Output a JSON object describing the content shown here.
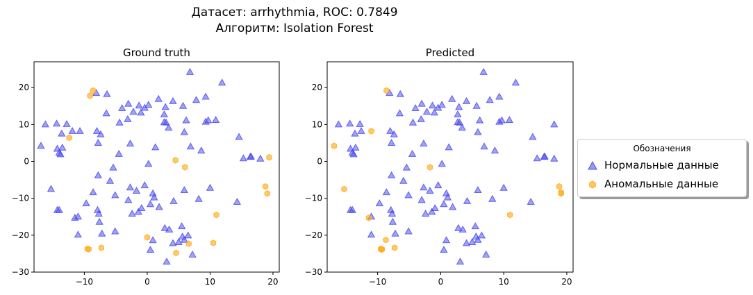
{
  "figure": {
    "title_line1": "Датасет: arrhythmia, ROC: 0.7849",
    "title_line2": "Алгоритм: Isolation Forest"
  },
  "legend": {
    "title": "Обозначения",
    "normal_label": "Нормальные данные",
    "anomaly_label": "Аномальные данные"
  },
  "colors": {
    "normal": "#4444ee",
    "anomaly": "#ffad1f"
  },
  "chart_data": [
    {
      "type": "scatter",
      "title": "Ground truth",
      "xlim": [
        -18,
        21
      ],
      "ylim": [
        -30,
        27
      ],
      "xticks": [
        -10,
        0,
        10,
        20
      ],
      "yticks": [
        -30,
        -20,
        -10,
        0,
        10,
        20
      ],
      "series": [
        {
          "name": "Нормальные данные",
          "marker": "triangle",
          "points": [
            [
              6.8,
              24.2
            ],
            [
              11.9,
              21.3
            ],
            [
              -8.1,
              18.5
            ],
            [
              -6.4,
              18.2
            ],
            [
              1.8,
              16.9
            ],
            [
              4.1,
              16.3
            ],
            [
              9.3,
              17.5
            ],
            [
              -3.0,
              15.6
            ],
            [
              -4.0,
              14.4
            ],
            [
              -1.3,
              15.1
            ],
            [
              -0.4,
              14.5
            ],
            [
              0.2,
              15.3
            ],
            [
              5.7,
              15.0
            ],
            [
              7.8,
              16.6
            ],
            [
              -6.5,
              13.0
            ],
            [
              -1.0,
              13.2
            ],
            [
              2.9,
              14.7
            ],
            [
              2.7,
              12.7
            ],
            [
              -16.2,
              10.0
            ],
            [
              -14.4,
              10.2
            ],
            [
              -12.8,
              10.1
            ],
            [
              -4.4,
              10.5
            ],
            [
              -3.1,
              11.4
            ],
            [
              -2.2,
              13.4
            ],
            [
              2.7,
              10.6
            ],
            [
              3.0,
              10.5
            ],
            [
              6.2,
              11.1
            ],
            [
              9.3,
              10.7
            ],
            [
              9.7,
              11.1
            ],
            [
              10.9,
              11.2
            ],
            [
              3.4,
              9.1
            ],
            [
              -13.6,
              7.5
            ],
            [
              -11.9,
              8.2
            ],
            [
              -10.7,
              8.2
            ],
            [
              -8.0,
              8.2
            ],
            [
              -7.4,
              7.3
            ],
            [
              5.9,
              7.9
            ],
            [
              -16.9,
              4.2
            ],
            [
              -14.3,
              3.4
            ],
            [
              -13.5,
              3.7
            ],
            [
              -14.0,
              2.3
            ],
            [
              -13.8,
              1.9
            ],
            [
              -7.8,
              5.0
            ],
            [
              -2.7,
              4.8
            ],
            [
              1.3,
              3.8
            ],
            [
              6.9,
              4.0
            ],
            [
              8.6,
              2.9
            ],
            [
              14.6,
              6.6
            ],
            [
              15.3,
              0.8
            ],
            [
              16.4,
              1.2
            ],
            [
              16.5,
              1.3
            ],
            [
              18.0,
              0.7
            ],
            [
              -4.5,
              2.0
            ],
            [
              0.2,
              -0.7
            ],
            [
              -5.4,
              -1.7
            ],
            [
              -7.8,
              -3.8
            ],
            [
              -5.9,
              -5.3
            ],
            [
              -8.6,
              -8.4
            ],
            [
              -5.1,
              -9.2
            ],
            [
              -2.7,
              -7.1
            ],
            [
              -1.7,
              -8.0
            ],
            [
              -0.4,
              -6.5
            ],
            [
              0.9,
              -8.7
            ],
            [
              5.9,
              -7.8
            ],
            [
              10.0,
              -7.2
            ],
            [
              -15.3,
              -7.5
            ],
            [
              -14.3,
              -13.2
            ],
            [
              -14.0,
              -13.2
            ],
            [
              -9.7,
              -11.4
            ],
            [
              -7.9,
              -13.2
            ],
            [
              -7.7,
              -14.2
            ],
            [
              -7.6,
              -16.4
            ],
            [
              -3.0,
              -10.5
            ],
            [
              -2.4,
              -14.2
            ],
            [
              -1.4,
              -13.7
            ],
            [
              -0.9,
              -12.7
            ],
            [
              0.5,
              -11.6
            ],
            [
              1.1,
              -9.8
            ],
            [
              1.9,
              -12.4
            ],
            [
              4.2,
              -10.8
            ],
            [
              8.2,
              -10.2
            ],
            [
              14.3,
              -11.0
            ],
            [
              -11.5,
              -15.3
            ],
            [
              -11.0,
              -15.0
            ],
            [
              -7.2,
              -19.6
            ],
            [
              -5.1,
              -19.0
            ],
            [
              -11.0,
              -19.9
            ],
            [
              2.8,
              -18.1
            ],
            [
              3.5,
              -18.5
            ],
            [
              5.5,
              -17.6
            ],
            [
              6.5,
              -20.1
            ],
            [
              0.9,
              -21.4
            ],
            [
              0.5,
              -24.0
            ],
            [
              4.1,
              -22.2
            ],
            [
              5.0,
              -21.9
            ],
            [
              5.6,
              -20.4
            ],
            [
              5.9,
              -21.3
            ],
            [
              3.1,
              -27.2
            ],
            [
              7.2,
              -25.3
            ]
          ]
        },
        {
          "name": "Аномальные данные",
          "marker": "hexagon",
          "points": [
            [
              -8.6,
              19.2
            ],
            [
              -9.1,
              17.8
            ],
            [
              -12.4,
              6.4
            ],
            [
              4.5,
              0.3
            ],
            [
              6.0,
              -1.6
            ],
            [
              18.8,
              -6.8
            ],
            [
              19.1,
              -8.7
            ],
            [
              19.4,
              1.1
            ],
            [
              11.0,
              -14.5
            ],
            [
              6.6,
              -22.3
            ],
            [
              10.5,
              -22.1
            ],
            [
              0.0,
              -20.6
            ],
            [
              4.6,
              -24.8
            ],
            [
              -7.3,
              -23.4
            ],
            [
              -9.5,
              -23.7
            ],
            [
              -9.3,
              -23.8
            ]
          ]
        }
      ]
    },
    {
      "type": "scatter",
      "title": "Predicted",
      "xlim": [
        -18,
        21
      ],
      "ylim": [
        -30,
        27
      ],
      "xticks": [
        -10,
        0,
        10,
        20
      ],
      "yticks": [
        -30,
        -20,
        -10,
        0,
        10,
        20
      ],
      "series": [
        {
          "name": "Нормальные данные",
          "marker": "triangle",
          "points": [
            [
              6.8,
              24.2
            ],
            [
              11.9,
              21.3
            ],
            [
              -8.1,
              18.5
            ],
            [
              -6.4,
              18.2
            ],
            [
              1.8,
              16.9
            ],
            [
              4.1,
              16.3
            ],
            [
              9.3,
              17.5
            ],
            [
              -3.0,
              15.6
            ],
            [
              -4.0,
              14.4
            ],
            [
              -1.3,
              15.1
            ],
            [
              -0.4,
              14.5
            ],
            [
              0.2,
              15.3
            ],
            [
              5.7,
              15.0
            ],
            [
              7.8,
              16.6
            ],
            [
              -6.5,
              13.0
            ],
            [
              -1.0,
              13.2
            ],
            [
              2.9,
              14.7
            ],
            [
              2.7,
              12.7
            ],
            [
              -16.2,
              10.0
            ],
            [
              -14.4,
              10.2
            ],
            [
              -12.8,
              10.1
            ],
            [
              -4.4,
              10.5
            ],
            [
              -3.1,
              11.4
            ],
            [
              -2.2,
              13.4
            ],
            [
              2.7,
              10.6
            ],
            [
              3.0,
              10.5
            ],
            [
              6.2,
              11.1
            ],
            [
              9.3,
              10.7
            ],
            [
              9.7,
              11.1
            ],
            [
              10.9,
              11.2
            ],
            [
              3.4,
              9.1
            ],
            [
              -13.6,
              7.5
            ],
            [
              -12.6,
              8.2
            ],
            [
              -8.0,
              8.2
            ],
            [
              -7.4,
              7.3
            ],
            [
              5.9,
              7.9
            ],
            [
              -14.3,
              3.4
            ],
            [
              -13.5,
              3.7
            ],
            [
              -14.0,
              2.3
            ],
            [
              -13.8,
              1.9
            ],
            [
              -7.8,
              5.0
            ],
            [
              -2.7,
              4.8
            ],
            [
              1.3,
              3.8
            ],
            [
              6.9,
              4.0
            ],
            [
              8.6,
              2.9
            ],
            [
              14.6,
              6.6
            ],
            [
              18.0,
              10.0
            ],
            [
              15.3,
              0.8
            ],
            [
              16.4,
              1.2
            ],
            [
              16.5,
              1.3
            ],
            [
              18.0,
              0.7
            ],
            [
              -4.5,
              2.0
            ],
            [
              0.2,
              -0.7
            ],
            [
              -5.4,
              -1.7
            ],
            [
              -7.8,
              -3.8
            ],
            [
              -5.9,
              -5.3
            ],
            [
              -8.6,
              -8.4
            ],
            [
              -5.1,
              -9.2
            ],
            [
              -2.7,
              -7.1
            ],
            [
              -1.7,
              -8.0
            ],
            [
              -0.4,
              -6.5
            ],
            [
              0.9,
              -8.7
            ],
            [
              5.9,
              -7.8
            ],
            [
              10.0,
              -7.2
            ],
            [
              -14.3,
              -13.2
            ],
            [
              -14.0,
              -13.2
            ],
            [
              -9.7,
              -11.4
            ],
            [
              -7.9,
              -13.2
            ],
            [
              -7.7,
              -14.2
            ],
            [
              -7.6,
              -16.4
            ],
            [
              -3.0,
              -10.5
            ],
            [
              -2.4,
              -14.2
            ],
            [
              -1.4,
              -13.7
            ],
            [
              -0.9,
              -12.7
            ],
            [
              0.5,
              -11.6
            ],
            [
              1.1,
              -9.8
            ],
            [
              1.9,
              -12.4
            ],
            [
              4.2,
              -10.8
            ],
            [
              8.2,
              -10.2
            ],
            [
              14.3,
              -11.0
            ],
            [
              -11.0,
              -15.0
            ],
            [
              -7.2,
              -19.6
            ],
            [
              -5.1,
              -19.0
            ],
            [
              -11.0,
              -19.9
            ],
            [
              2.8,
              -18.1
            ],
            [
              3.5,
              -18.5
            ],
            [
              5.5,
              -17.6
            ],
            [
              6.5,
              -20.1
            ],
            [
              0.9,
              -21.4
            ],
            [
              0.5,
              -24.0
            ],
            [
              4.1,
              -22.2
            ],
            [
              5.0,
              -21.9
            ],
            [
              5.6,
              -20.4
            ],
            [
              5.9,
              -21.3
            ],
            [
              3.1,
              -27.2
            ],
            [
              7.2,
              -25.3
            ]
          ]
        },
        {
          "name": "Аномальные данные",
          "marker": "hexagon",
          "points": [
            [
              -8.6,
              19.2
            ],
            [
              -11.0,
              8.2
            ],
            [
              -16.9,
              4.2
            ],
            [
              -1.7,
              -1.6
            ],
            [
              -15.3,
              -7.5
            ],
            [
              -11.4,
              -15.3
            ],
            [
              18.8,
              -6.8
            ],
            [
              19.1,
              -8.7
            ],
            [
              19.1,
              -8.4
            ],
            [
              11.0,
              -14.5
            ],
            [
              -8.7,
              -21.3
            ],
            [
              -7.3,
              -23.4
            ],
            [
              -9.5,
              -23.7
            ],
            [
              -9.3,
              -23.8
            ],
            [
              -9.4,
              -23.9
            ]
          ]
        }
      ]
    }
  ]
}
